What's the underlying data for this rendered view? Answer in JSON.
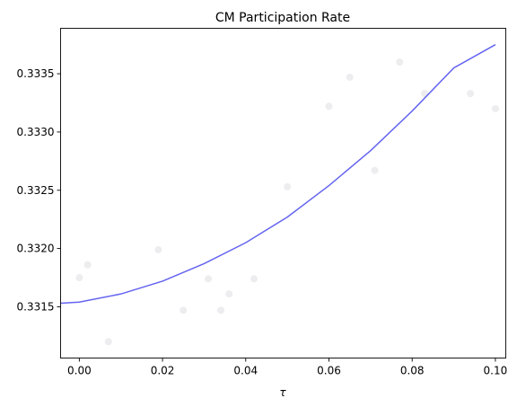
{
  "chart_data": {
    "type": "line",
    "title": "CM Participation Rate",
    "xlabel": "τ",
    "ylabel": "",
    "xlim": [
      -0.0045,
      0.1025
    ],
    "ylim": [
      0.33106,
      0.33389
    ],
    "grid": false,
    "x_ticks": [
      0.0,
      0.02,
      0.04,
      0.06,
      0.08,
      0.1
    ],
    "x_tick_labels": [
      "0.00",
      "0.02",
      "0.04",
      "0.06",
      "0.08",
      "0.10"
    ],
    "y_ticks": [
      0.3315,
      0.332,
      0.3325,
      0.333,
      0.3335
    ],
    "y_tick_labels": [
      "0.3315",
      "0.3320",
      "0.3325",
      "0.3330",
      "0.3335"
    ],
    "series": [
      {
        "kind": "line",
        "color": "#6464f0",
        "x": [
          -0.0045,
          0.0,
          0.01,
          0.02,
          0.03,
          0.04,
          0.05,
          0.06,
          0.07,
          0.08,
          0.09,
          0.1
        ],
        "y": [
          0.33153,
          0.33154,
          0.33161,
          0.33172,
          0.33187,
          0.33205,
          0.33227,
          0.33254,
          0.33284,
          0.33318,
          0.33355,
          0.33375
        ]
      },
      {
        "kind": "scatter",
        "color": "#ededf0",
        "x": [
          0.0,
          0.002,
          0.007,
          0.019,
          0.025,
          0.031,
          0.034,
          0.036,
          0.042,
          0.05,
          0.06,
          0.065,
          0.071,
          0.077,
          0.083,
          0.094,
          0.1
        ],
        "y": [
          0.33175,
          0.33186,
          0.3312,
          0.33199,
          0.33147,
          0.33174,
          0.33147,
          0.33161,
          0.33174,
          0.33253,
          0.33322,
          0.33347,
          0.33267,
          0.3336,
          0.33333,
          0.33333,
          0.3332
        ]
      }
    ]
  }
}
